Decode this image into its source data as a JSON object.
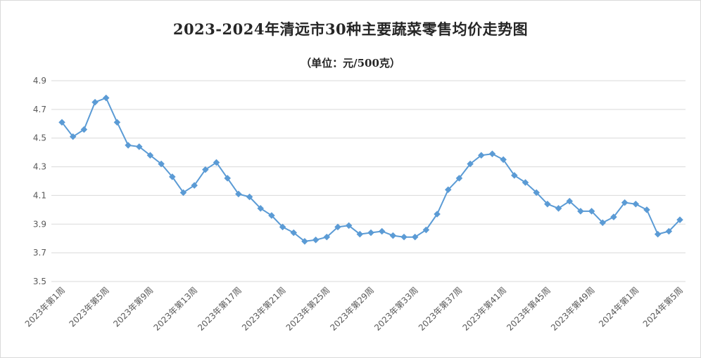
{
  "chart_data": {
    "type": "line",
    "title": "2023-2024年清远市30种主要蔬菜零售均价走势图",
    "subtitle": "（单位：元/500克）",
    "xlabel": "",
    "ylabel": "",
    "ylim": [
      3.5,
      4.9
    ],
    "yticks": [
      "3.5",
      "3.7",
      "3.9",
      "4.1",
      "4.3",
      "4.5",
      "4.7",
      "4.9"
    ],
    "grid": true,
    "legend": "none",
    "color": "#5b9bd5",
    "categories": [
      "2023年第1周",
      "2023年第2周",
      "2023年第3周",
      "2023年第4周",
      "2023年第5周",
      "2023年第6周",
      "2023年第7周",
      "2023年第8周",
      "2023年第9周",
      "2023年第10周",
      "2023年第11周",
      "2023年第12周",
      "2023年第13周",
      "2023年第14周",
      "2023年第15周",
      "2023年第16周",
      "2023年第17周",
      "2023年第18周",
      "2023年第19周",
      "2023年第20周",
      "2023年第21周",
      "2023年第22周",
      "2023年第23周",
      "2023年第24周",
      "2023年第25周",
      "2023年第26周",
      "2023年第27周",
      "2023年第28周",
      "2023年第29周",
      "2023年第30周",
      "2023年第31周",
      "2023年第32周",
      "2023年第33周",
      "2023年第34周",
      "2023年第35周",
      "2023年第36周",
      "2023年第37周",
      "2023年第38周",
      "2023年第39周",
      "2023年第40周",
      "2023年第41周",
      "2023年第42周",
      "2023年第43周",
      "2023年第44周",
      "2023年第45周",
      "2023年第46周",
      "2023年第47周",
      "2023年第48周",
      "2023年第49周",
      "2023年第50周",
      "2023年第51周",
      "2023年第52周",
      "2024年第1周",
      "2024年第2周",
      "2024年第3周",
      "2024年第4周",
      "2024年第5周"
    ],
    "labeled_ticks": [
      "2023年第1周",
      "2023年第5周",
      "2023年第9周",
      "2023年第13周",
      "2023年第17周",
      "2023年第21周",
      "2023年第25周",
      "2023年第29周",
      "2023年第33周",
      "2023年第37周",
      "2023年第41周",
      "2023年第45周",
      "2023年第49周",
      "2024年第1周",
      "2024年第5周"
    ],
    "series": [
      {
        "values": [
          4.61,
          4.51,
          4.56,
          4.75,
          4.78,
          4.61,
          4.45,
          4.44,
          4.38,
          4.32,
          4.23,
          4.12,
          4.17,
          4.28,
          4.33,
          4.22,
          4.11,
          4.09,
          4.01,
          3.96,
          3.88,
          3.84,
          3.78,
          3.79,
          3.81,
          3.88,
          3.89,
          3.83,
          3.84,
          3.85,
          3.82,
          3.81,
          3.81,
          3.86,
          3.97,
          4.14,
          4.22,
          4.32,
          4.38,
          4.39,
          4.35,
          4.24,
          4.19,
          4.12,
          4.04,
          4.01,
          4.06,
          3.99,
          3.99,
          3.91,
          3.95,
          4.05,
          4.04,
          4.0,
          3.83,
          3.85,
          3.93
        ]
      }
    ]
  }
}
